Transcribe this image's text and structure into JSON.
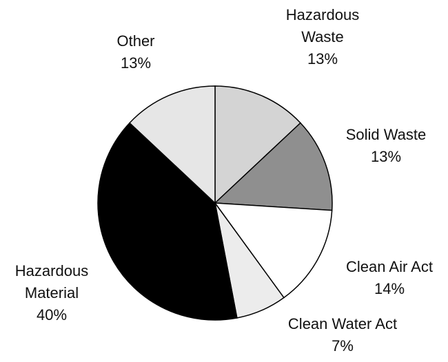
{
  "chart_data": {
    "type": "pie",
    "categories": [
      "Hazardous Waste",
      "Solid Waste",
      "Clean Air Act",
      "Clean Water Act",
      "Hazardous Material",
      "Other"
    ],
    "values": [
      13,
      13,
      14,
      7,
      40,
      13
    ],
    "value_labels": [
      "13%",
      "13%",
      "14%",
      "7%",
      "40%",
      "13%"
    ],
    "colors": [
      "#d4d4d4",
      "#8f8f8f",
      "#ffffff",
      "#ececec",
      "#000000",
      "#e6e6e6"
    ]
  }
}
